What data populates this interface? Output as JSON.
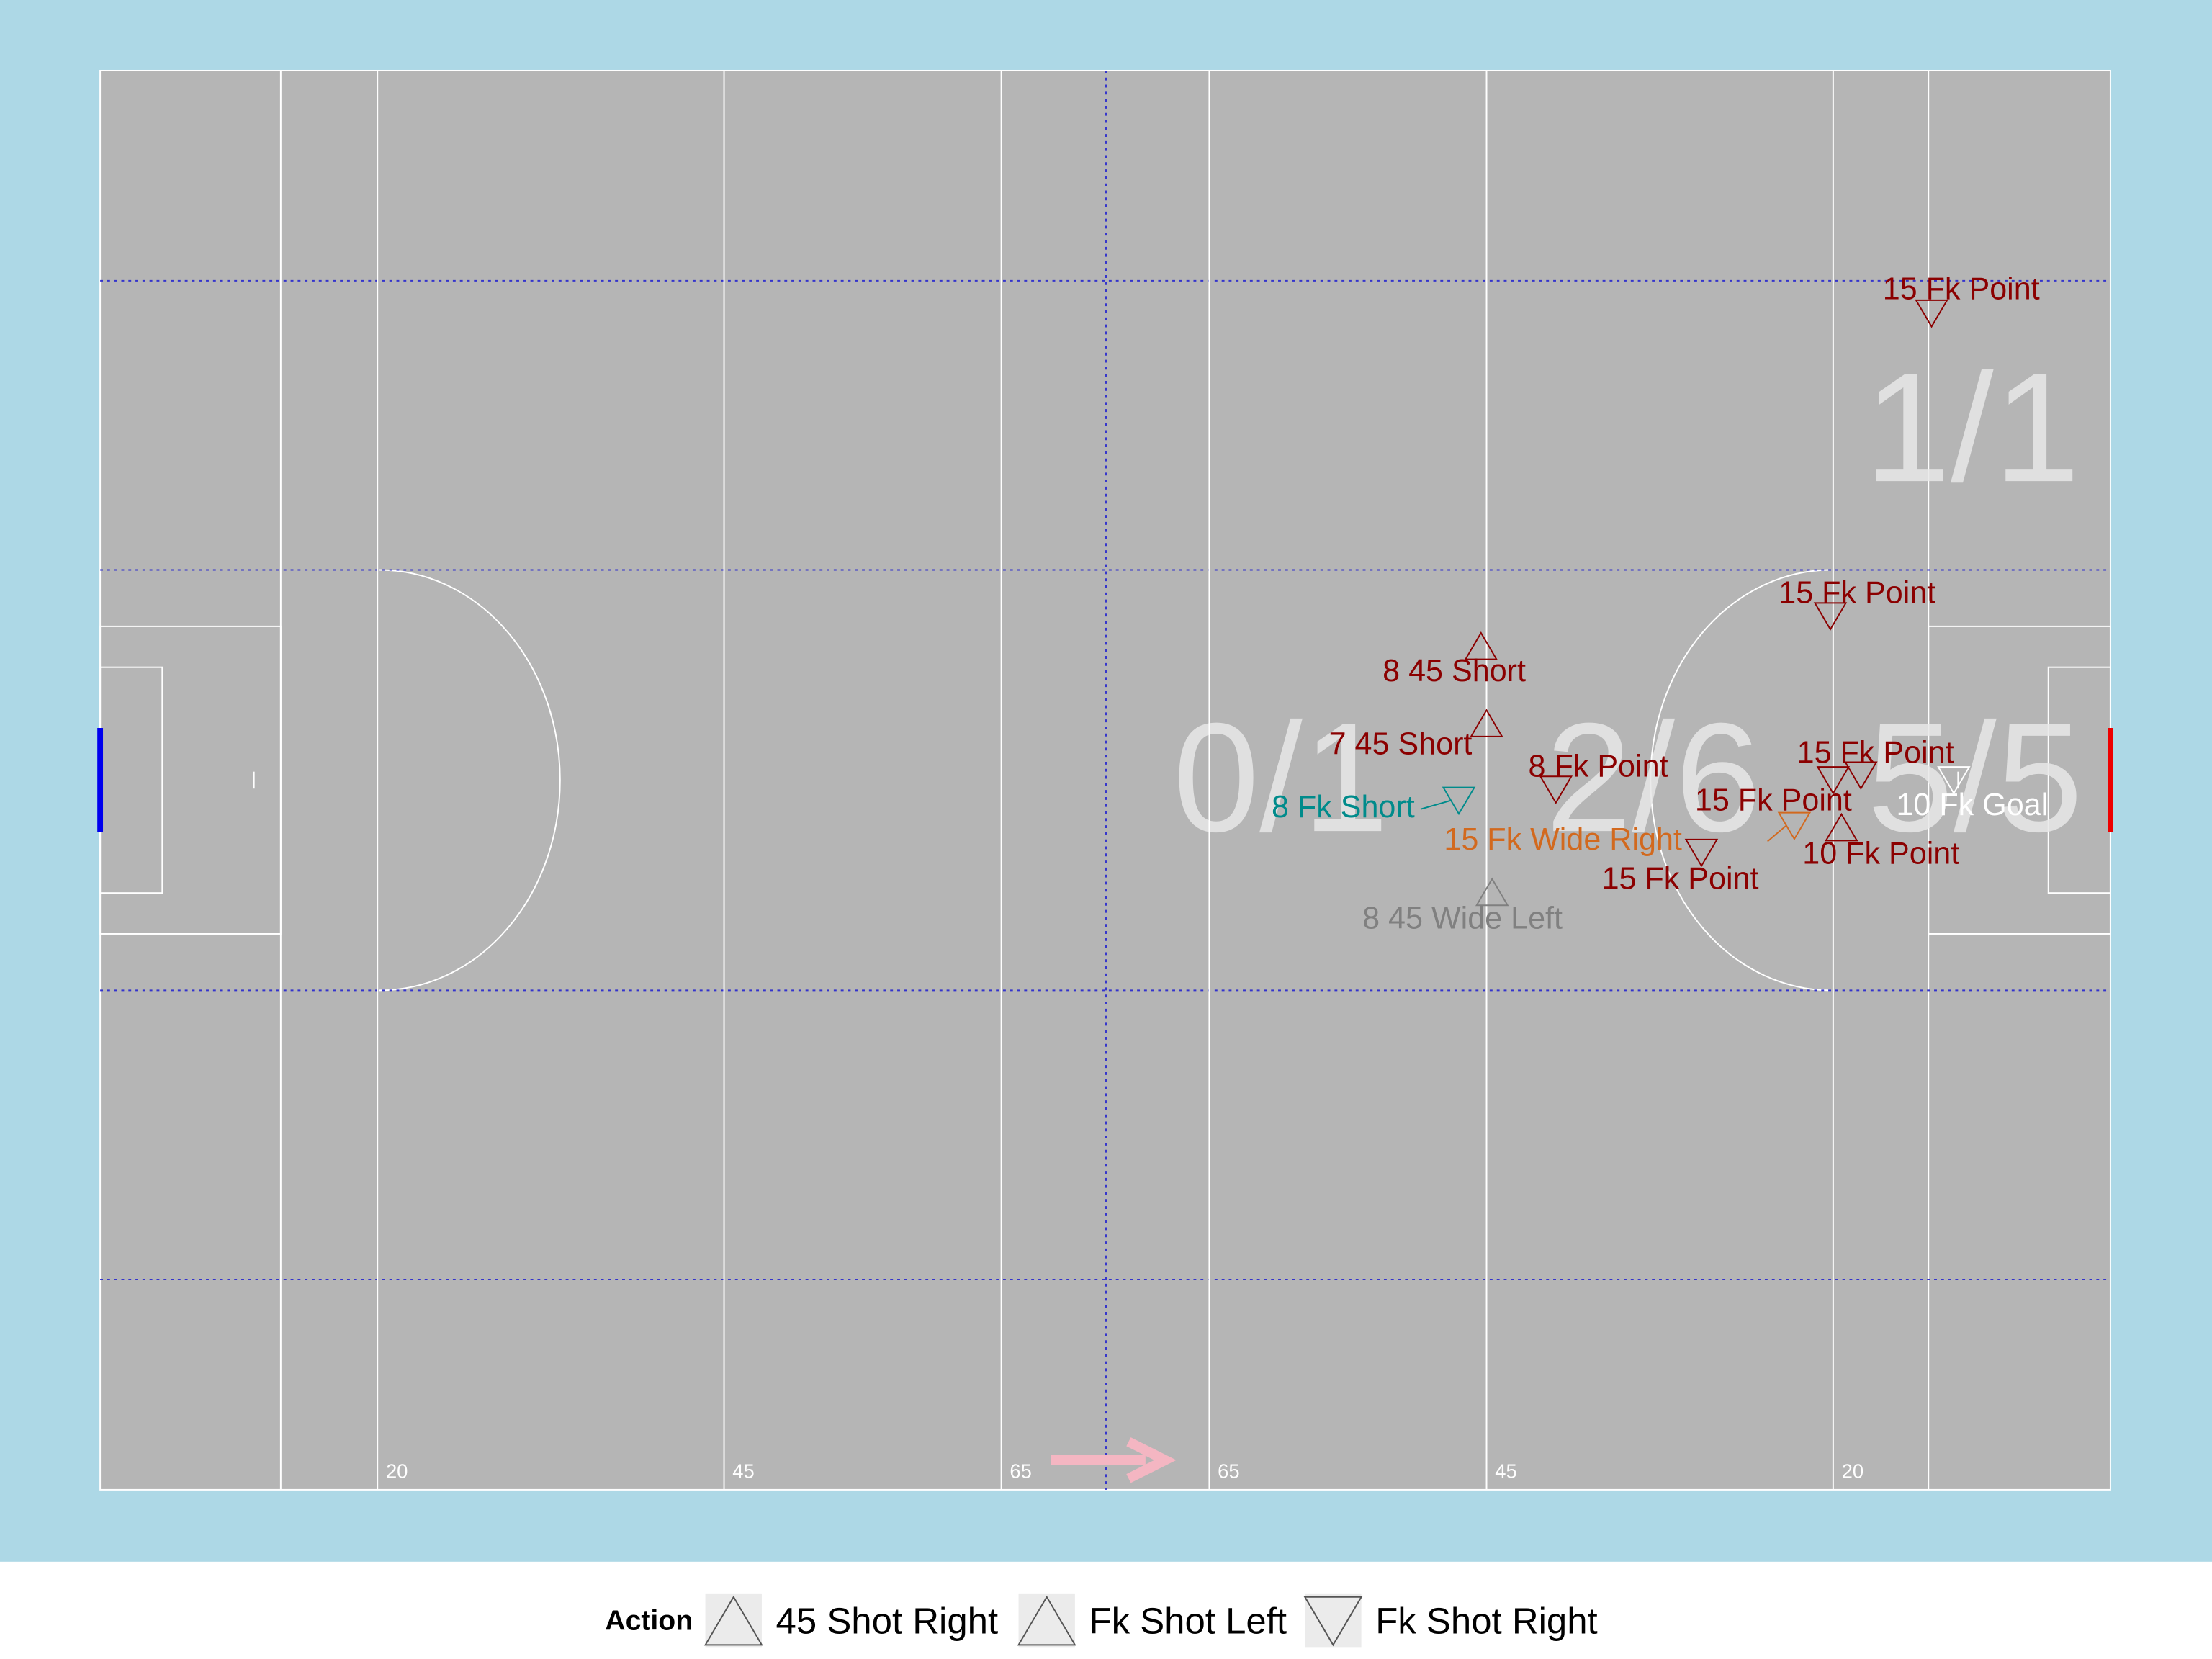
{
  "chart_data": {
    "type": "scatter",
    "xlim": [
      0,
      145
    ],
    "ylim": [
      0,
      90
    ],
    "xticks": [
      20,
      45,
      65,
      {
        "value": 80,
        "label": "65"
      },
      {
        "value": 100,
        "label": "45"
      },
      {
        "value": 125,
        "label": "20"
      }
    ],
    "zones": [
      "1/1",
      "0/1",
      "2/6",
      "5/5"
    ],
    "legend": {
      "title": "Action",
      "entries": [
        {
          "name": "45 Shot Right",
          "shape": "up"
        },
        {
          "name": "Fk Shot Left",
          "shape": "up"
        },
        {
          "name": "Fk Shot Right",
          "shape": "down"
        }
      ]
    },
    "points": [
      {
        "label": "15 Fk Point",
        "x": 132.1,
        "y": 74.6,
        "action": "Fk Shot Right",
        "color": "#8b0000"
      },
      {
        "label": "15 Fk Point",
        "x": 124.8,
        "y": 55.4,
        "action": "Fk Shot Right",
        "color": "#8b0000"
      },
      {
        "label": "8 45 Short",
        "x": 99.6,
        "y": 53.5,
        "action": "45 Shot Right",
        "color": "#8b0000"
      },
      {
        "label": "7 45 Short",
        "x": 100.0,
        "y": 48.6,
        "action": "45 Shot Right",
        "color": "#8b0000"
      },
      {
        "label": "8 Fk Short",
        "x": 98.0,
        "y": 43.7,
        "action": "Fk Shot Right",
        "color": "#008b8b"
      },
      {
        "label": "8 Fk Point",
        "x": 105.0,
        "y": 44.4,
        "action": "Fk Shot Right",
        "color": "#8b0000"
      },
      {
        "label": "15 Fk Point",
        "x": 125.0,
        "y": 45.0,
        "action": "Fk Shot Right",
        "color": "#8b0000"
      },
      {
        "label": "15 Fk Point",
        "x": 127.0,
        "y": 45.3,
        "action": "Fk Shot Right",
        "color": "#8b0000"
      },
      {
        "label": "15 Fk Wide Right",
        "x": 122.2,
        "y": 42.1,
        "action": "Fk Shot Right",
        "color": "#d2691e"
      },
      {
        "label": "15 Fk Point",
        "x": 115.5,
        "y": 40.4,
        "action": "Fk Shot Right",
        "color": "#8b0000"
      },
      {
        "label": "10 Fk Point",
        "x": 125.6,
        "y": 42.0,
        "action": "Fk Shot Left",
        "color": "#8b0000"
      },
      {
        "label": "10 Fk Goal",
        "x": 133.7,
        "y": 45.0,
        "action": "Fk Shot Right",
        "color": "#ffffff"
      },
      {
        "label": "8 45 Wide Left",
        "x": 100.4,
        "y": 37.9,
        "action": "45 Shot Right",
        "color": "#808080"
      }
    ]
  }
}
